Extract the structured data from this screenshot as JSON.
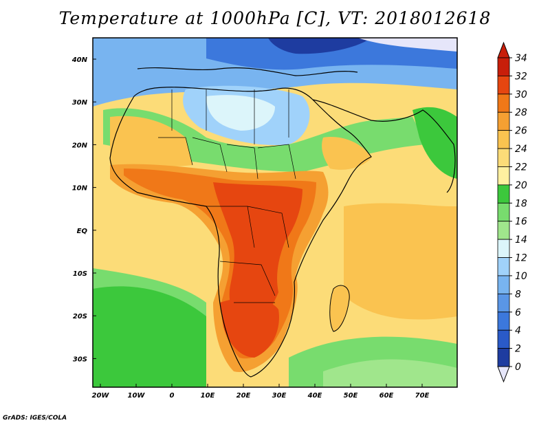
{
  "title": "Temperature at 1000hPa [C], VT: 2018012618",
  "footer": "GrADS: IGES/COLA",
  "map": {
    "lon_range": [
      -22,
      80
    ],
    "lat_range": [
      -37,
      45
    ],
    "lon_ticks": [
      "20W",
      "10W",
      "0",
      "10E",
      "20E",
      "30E",
      "40E",
      "50E",
      "60E",
      "70E"
    ],
    "lat_ticks": [
      "40N",
      "30N",
      "20N",
      "10N",
      "EQ",
      "10S",
      "20S",
      "30S"
    ]
  },
  "colorbar": {
    "levels": [
      "0",
      "2",
      "4",
      "6",
      "8",
      "10",
      "12",
      "14",
      "16",
      "18",
      "20",
      "22",
      "24",
      "26",
      "28",
      "30",
      "32",
      "34"
    ],
    "colors": [
      "#0a1e82",
      "#1e3ca0",
      "#2a5ac8",
      "#3c78dc",
      "#5a96e6",
      "#78b4f0",
      "#a0d2fa",
      "#dcf5fa",
      "#a0e68c",
      "#78dc6e",
      "#3cc83c",
      "#fff0a0",
      "#fcdc78",
      "#fac350",
      "#f5a032",
      "#f07818",
      "#e64610",
      "#c81e0a"
    ],
    "under_color": "#e6e6fa",
    "over_color": "#c81e0a"
  }
}
